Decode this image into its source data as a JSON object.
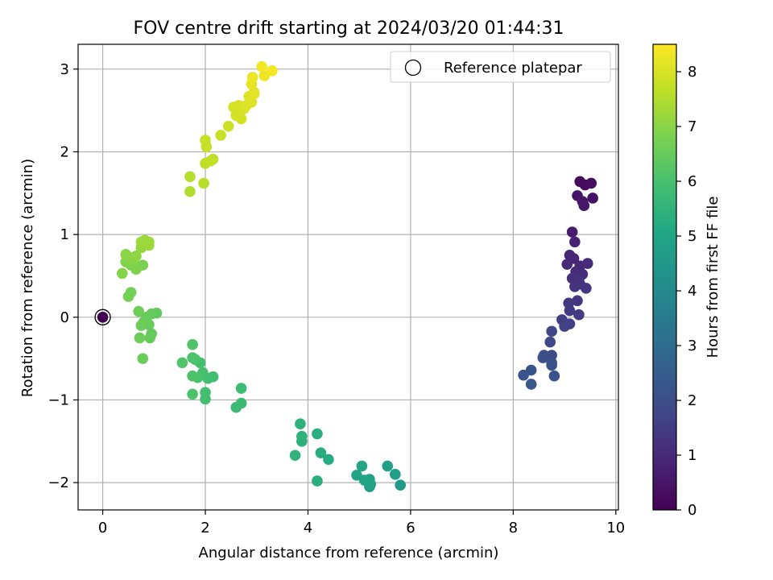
{
  "chart_data": {
    "type": "scatter",
    "title": "FOV centre drift starting at 2024/03/20 01:44:31",
    "xlabel": "Angular distance from reference (arcmin)",
    "ylabel": "Rotation from reference (arcmin)",
    "xlim": [
      -0.48,
      10.05
    ],
    "ylim": [
      -2.33,
      3.3
    ],
    "xticks": [
      0,
      2,
      4,
      6,
      8,
      10
    ],
    "yticks": [
      -2,
      -1,
      0,
      1,
      2,
      3
    ],
    "grid": true,
    "legend": {
      "position": "top-right",
      "label": "Reference platepar"
    },
    "colorbar": {
      "label": "Hours from first FF file",
      "min": 0,
      "max": 8.5,
      "ticks": [
        0,
        1,
        2,
        3,
        4,
        5,
        6,
        7,
        8
      ],
      "colormap": "viridis"
    },
    "reference_point": {
      "x": 0,
      "y": 0,
      "c": 0
    },
    "points": [
      {
        "x": 9.3,
        "y": 1.64,
        "c": 0.2
      },
      {
        "x": 9.4,
        "y": 1.6,
        "c": 0.25
      },
      {
        "x": 9.52,
        "y": 1.62,
        "c": 0.3
      },
      {
        "x": 9.55,
        "y": 1.44,
        "c": 0.4
      },
      {
        "x": 9.25,
        "y": 1.47,
        "c": 0.45
      },
      {
        "x": 9.35,
        "y": 1.4,
        "c": 0.5
      },
      {
        "x": 9.38,
        "y": 1.35,
        "c": 0.55
      },
      {
        "x": 9.15,
        "y": 1.03,
        "c": 0.7
      },
      {
        "x": 9.2,
        "y": 0.91,
        "c": 0.8
      },
      {
        "x": 9.1,
        "y": 0.75,
        "c": 0.85
      },
      {
        "x": 9.18,
        "y": 0.71,
        "c": 0.9
      },
      {
        "x": 9.3,
        "y": 0.62,
        "c": 0.95
      },
      {
        "x": 9.45,
        "y": 0.65,
        "c": 1.0
      },
      {
        "x": 9.05,
        "y": 0.64,
        "c": 1.0
      },
      {
        "x": 9.22,
        "y": 0.55,
        "c": 1.05
      },
      {
        "x": 9.35,
        "y": 0.52,
        "c": 1.1
      },
      {
        "x": 9.15,
        "y": 0.47,
        "c": 1.15
      },
      {
        "x": 9.28,
        "y": 0.44,
        "c": 1.2
      },
      {
        "x": 9.2,
        "y": 0.37,
        "c": 1.25
      },
      {
        "x": 9.3,
        "y": 0.4,
        "c": 1.25
      },
      {
        "x": 9.42,
        "y": 0.35,
        "c": 1.3
      },
      {
        "x": 9.25,
        "y": 0.2,
        "c": 1.35
      },
      {
        "x": 9.08,
        "y": 0.17,
        "c": 1.4
      },
      {
        "x": 9.1,
        "y": 0.08,
        "c": 1.45
      },
      {
        "x": 9.28,
        "y": 0.03,
        "c": 1.5
      },
      {
        "x": 8.95,
        "y": -0.03,
        "c": 1.55
      },
      {
        "x": 9.1,
        "y": -0.08,
        "c": 1.6
      },
      {
        "x": 9.0,
        "y": -0.11,
        "c": 1.65
      },
      {
        "x": 8.75,
        "y": -0.17,
        "c": 1.8
      },
      {
        "x": 8.72,
        "y": -0.3,
        "c": 1.85
      },
      {
        "x": 8.75,
        "y": -0.46,
        "c": 1.95
      },
      {
        "x": 8.6,
        "y": -0.46,
        "c": 2.0
      },
      {
        "x": 8.58,
        "y": -0.49,
        "c": 2.05
      },
      {
        "x": 8.75,
        "y": -0.55,
        "c": 2.1
      },
      {
        "x": 8.75,
        "y": -0.58,
        "c": 2.1
      },
      {
        "x": 8.35,
        "y": -0.64,
        "c": 2.2
      },
      {
        "x": 8.2,
        "y": -0.7,
        "c": 2.25
      },
      {
        "x": 8.8,
        "y": -0.71,
        "c": 2.25
      },
      {
        "x": 8.35,
        "y": -0.81,
        "c": 2.3
      },
      {
        "x": 5.8,
        "y": -2.03,
        "c": 4.6
      },
      {
        "x": 5.7,
        "y": -1.9,
        "c": 4.7
      },
      {
        "x": 5.55,
        "y": -1.8,
        "c": 4.8
      },
      {
        "x": 5.22,
        "y": -2.02,
        "c": 4.85
      },
      {
        "x": 5.2,
        "y": -2.05,
        "c": 4.85
      },
      {
        "x": 5.2,
        "y": -1.96,
        "c": 4.9
      },
      {
        "x": 5.1,
        "y": -1.97,
        "c": 4.95
      },
      {
        "x": 5.05,
        "y": -1.8,
        "c": 5.0
      },
      {
        "x": 4.95,
        "y": -1.91,
        "c": 5.0
      },
      {
        "x": 4.4,
        "y": -1.72,
        "c": 5.2
      },
      {
        "x": 4.25,
        "y": -1.64,
        "c": 5.25
      },
      {
        "x": 4.18,
        "y": -1.98,
        "c": 5.3
      },
      {
        "x": 4.18,
        "y": -1.41,
        "c": 5.3
      },
      {
        "x": 3.88,
        "y": -1.5,
        "c": 5.4
      },
      {
        "x": 3.88,
        "y": -1.44,
        "c": 5.4
      },
      {
        "x": 3.85,
        "y": -1.29,
        "c": 5.45
      },
      {
        "x": 3.75,
        "y": -1.67,
        "c": 5.5
      },
      {
        "x": 2.7,
        "y": -1.04,
        "c": 5.75
      },
      {
        "x": 2.6,
        "y": -1.09,
        "c": 5.75
      },
      {
        "x": 2.7,
        "y": -0.86,
        "c": 5.8
      },
      {
        "x": 2.15,
        "y": -0.72,
        "c": 5.9
      },
      {
        "x": 2.05,
        "y": -0.74,
        "c": 5.9
      },
      {
        "x": 2.0,
        "y": -0.99,
        "c": 5.95
      },
      {
        "x": 2.0,
        "y": -0.91,
        "c": 5.95
      },
      {
        "x": 1.95,
        "y": -0.67,
        "c": 6.0
      },
      {
        "x": 1.9,
        "y": -0.55,
        "c": 6.0
      },
      {
        "x": 1.85,
        "y": -0.73,
        "c": 6.05
      },
      {
        "x": 1.8,
        "y": -0.51,
        "c": 6.05
      },
      {
        "x": 1.75,
        "y": -0.49,
        "c": 6.1
      },
      {
        "x": 1.75,
        "y": -0.71,
        "c": 6.1
      },
      {
        "x": 1.75,
        "y": -0.93,
        "c": 6.1
      },
      {
        "x": 1.75,
        "y": -0.33,
        "c": 6.15
      },
      {
        "x": 1.55,
        "y": -0.55,
        "c": 6.15
      },
      {
        "x": 1.05,
        "y": 0.05,
        "c": 6.4
      },
      {
        "x": 0.95,
        "y": 0.04,
        "c": 6.45
      },
      {
        "x": 0.95,
        "y": -0.2,
        "c": 6.45
      },
      {
        "x": 0.92,
        "y": -0.25,
        "c": 6.5
      },
      {
        "x": 0.9,
        "y": -0.09,
        "c": 6.5
      },
      {
        "x": 0.85,
        "y": 0.0,
        "c": 6.5
      },
      {
        "x": 0.8,
        "y": -0.06,
        "c": 6.55
      },
      {
        "x": 0.78,
        "y": -0.5,
        "c": 6.55
      },
      {
        "x": 0.75,
        "y": -0.1,
        "c": 6.6
      },
      {
        "x": 0.72,
        "y": -0.25,
        "c": 6.6
      },
      {
        "x": 0.7,
        "y": 0.07,
        "c": 6.6
      },
      {
        "x": 0.5,
        "y": 0.25,
        "c": 6.7
      },
      {
        "x": 0.55,
        "y": 0.3,
        "c": 6.7
      },
      {
        "x": 0.78,
        "y": 0.63,
        "c": 6.8
      },
      {
        "x": 0.65,
        "y": 0.58,
        "c": 6.85
      },
      {
        "x": 0.55,
        "y": 0.63,
        "c": 6.9
      },
      {
        "x": 0.6,
        "y": 0.67,
        "c": 6.9
      },
      {
        "x": 0.45,
        "y": 0.67,
        "c": 6.9
      },
      {
        "x": 0.38,
        "y": 0.53,
        "c": 6.95
      },
      {
        "x": 0.45,
        "y": 0.76,
        "c": 7.0
      },
      {
        "x": 0.5,
        "y": 0.73,
        "c": 7.0
      },
      {
        "x": 0.6,
        "y": 0.71,
        "c": 7.0
      },
      {
        "x": 0.65,
        "y": 0.74,
        "c": 7.05
      },
      {
        "x": 0.75,
        "y": 0.84,
        "c": 7.1
      },
      {
        "x": 0.75,
        "y": 0.91,
        "c": 7.2
      },
      {
        "x": 0.82,
        "y": 0.93,
        "c": 7.2
      },
      {
        "x": 0.9,
        "y": 0.91,
        "c": 7.25
      },
      {
        "x": 0.9,
        "y": 0.87,
        "c": 7.25
      },
      {
        "x": 1.7,
        "y": 1.52,
        "c": 7.5
      },
      {
        "x": 1.7,
        "y": 1.7,
        "c": 7.55
      },
      {
        "x": 1.97,
        "y": 1.62,
        "c": 7.6
      },
      {
        "x": 2.0,
        "y": 1.86,
        "c": 7.65
      },
      {
        "x": 2.1,
        "y": 1.89,
        "c": 7.7
      },
      {
        "x": 2.15,
        "y": 1.91,
        "c": 7.7
      },
      {
        "x": 2.02,
        "y": 2.06,
        "c": 7.75
      },
      {
        "x": 2.0,
        "y": 2.14,
        "c": 7.75
      },
      {
        "x": 2.3,
        "y": 2.2,
        "c": 7.8
      },
      {
        "x": 2.45,
        "y": 2.31,
        "c": 7.85
      },
      {
        "x": 2.6,
        "y": 2.44,
        "c": 7.9
      },
      {
        "x": 2.7,
        "y": 2.4,
        "c": 7.95
      },
      {
        "x": 2.55,
        "y": 2.54,
        "c": 7.95
      },
      {
        "x": 2.65,
        "y": 2.56,
        "c": 8.0
      },
      {
        "x": 2.75,
        "y": 2.52,
        "c": 8.0
      },
      {
        "x": 2.8,
        "y": 2.56,
        "c": 8.05
      },
      {
        "x": 2.85,
        "y": 2.67,
        "c": 8.1
      },
      {
        "x": 2.9,
        "y": 2.6,
        "c": 8.1
      },
      {
        "x": 2.95,
        "y": 2.7,
        "c": 8.15
      },
      {
        "x": 2.95,
        "y": 2.72,
        "c": 8.15
      },
      {
        "x": 2.9,
        "y": 2.82,
        "c": 8.2
      },
      {
        "x": 2.92,
        "y": 2.9,
        "c": 8.25
      },
      {
        "x": 3.15,
        "y": 2.92,
        "c": 8.3
      },
      {
        "x": 3.1,
        "y": 3.03,
        "c": 8.35
      },
      {
        "x": 3.3,
        "y": 2.98,
        "c": 8.4
      }
    ]
  }
}
